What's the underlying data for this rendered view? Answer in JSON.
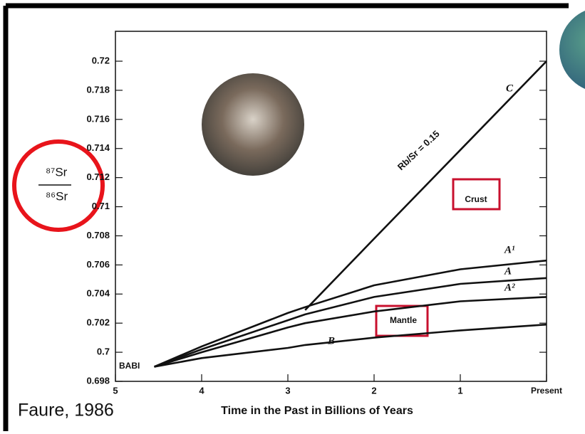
{
  "chart_data": {
    "type": "line",
    "x_label": "Time in the Past in Billions of Years",
    "y_label": {
      "numerator": "⁸⁷Sr",
      "denominator": "⁸⁶Sr"
    },
    "x": [
      4.55,
      4,
      3,
      2.8,
      2,
      1,
      0
    ],
    "series": [
      {
        "name": "C",
        "color": "#111111",
        "values": [
          null,
          null,
          null,
          0.7029,
          0.7078,
          0.7139,
          0.72
        ]
      },
      {
        "name": "A¹",
        "color": "#111111",
        "values": [
          0.699,
          0.7004,
          0.7027,
          0.7031,
          0.7046,
          0.7057,
          0.7063
        ]
      },
      {
        "name": "A",
        "color": "#111111",
        "values": [
          0.699,
          0.7002,
          0.7022,
          0.7026,
          0.7038,
          0.7047,
          0.7051
        ]
      },
      {
        "name": "A²",
        "color": "#111111",
        "values": [
          0.699,
          0.7,
          0.7017,
          0.702,
          0.7028,
          0.7035,
          0.7038
        ]
      },
      {
        "name": "B",
        "color": "#111111",
        "values": [
          0.699,
          0.6996,
          0.7003,
          0.7005,
          0.701,
          0.7015,
          0.7019
        ]
      }
    ],
    "xlim": [
      5,
      0
    ],
    "xticks": [
      5,
      4,
      3,
      2,
      1,
      {
        "value": 0,
        "label": "Present"
      }
    ],
    "ylim": [
      0.698,
      0.72
    ],
    "yticks": [
      0.698,
      0.7,
      0.702,
      0.704,
      0.706,
      0.708,
      0.71,
      0.712,
      0.714,
      0.716,
      0.718,
      0.72
    ],
    "annotations": {
      "rb_sr": "Rb/Sr = 0.15",
      "babi": "BABI",
      "crust": "Crust",
      "mantle": "Mantle",
      "source": "Faure, 1986"
    }
  }
}
